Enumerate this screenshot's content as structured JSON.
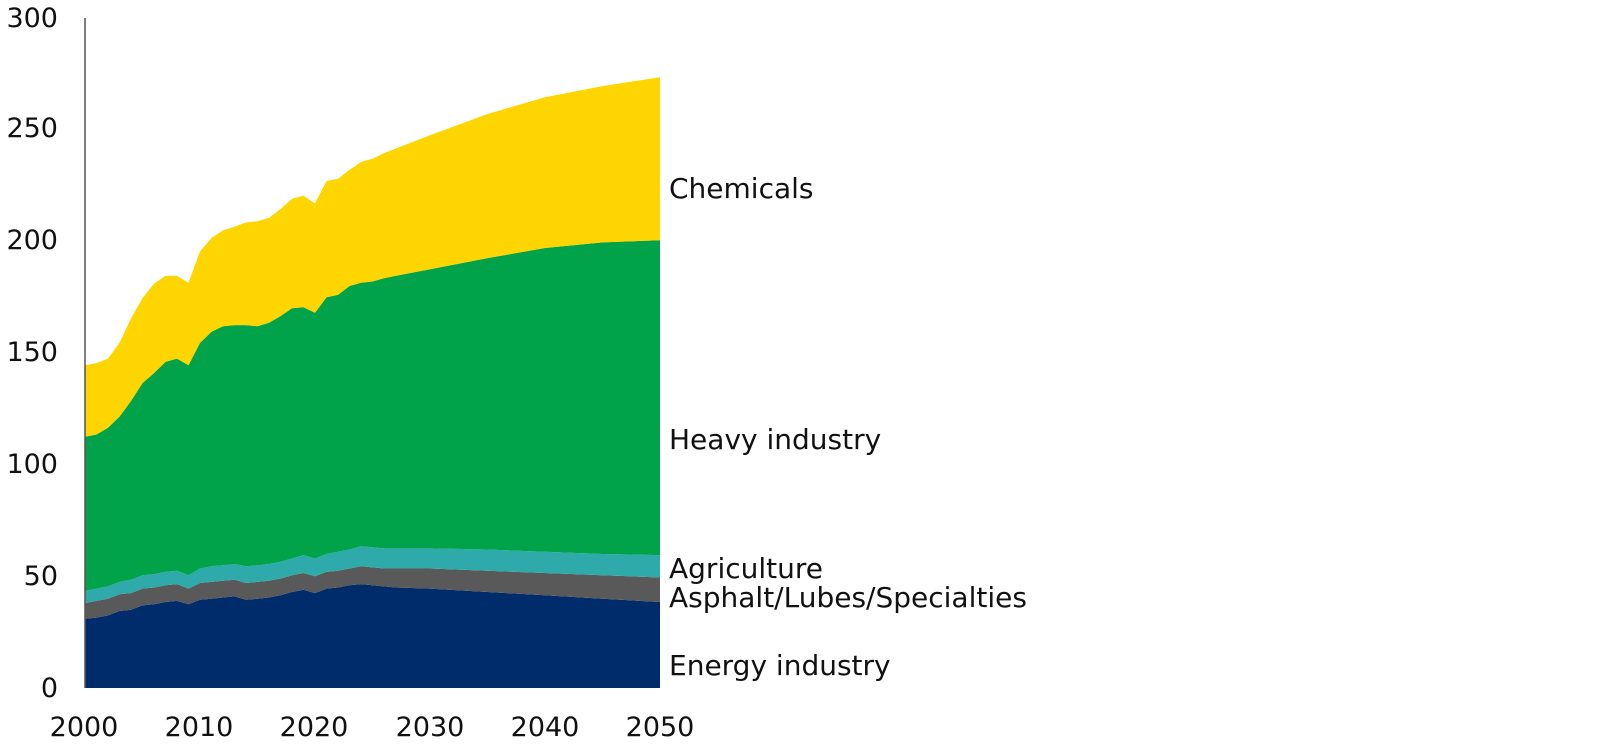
{
  "chart_data": {
    "type": "area",
    "stacked": true,
    "x": [
      2000,
      2001,
      2002,
      2003,
      2004,
      2005,
      2006,
      2007,
      2008,
      2009,
      2010,
      2011,
      2012,
      2013,
      2014,
      2015,
      2016,
      2017,
      2018,
      2019,
      2020,
      2021,
      2022,
      2023,
      2024,
      2025,
      2026,
      2027,
      2030,
      2035,
      2040,
      2045,
      2050
    ],
    "series": [
      {
        "name": "Energy industry",
        "color": "#002c6b",
        "values": [
          31,
          31.5,
          32.5,
          34.5,
          35,
          37,
          37.5,
          38.5,
          39,
          37.5,
          39.5,
          40,
          40.5,
          41,
          39.5,
          40,
          40.5,
          41.5,
          43,
          44,
          42.5,
          44.5,
          45,
          46,
          46.5,
          46,
          45.5,
          45,
          44.5,
          43,
          41.5,
          40,
          38.5
        ]
      },
      {
        "name": "Asphalt/Lubes/Specialties",
        "color": "#595959",
        "values": [
          7,
          7.5,
          7.5,
          7.5,
          7.5,
          7.5,
          7.5,
          7.5,
          7.5,
          7,
          7.5,
          7.5,
          7.5,
          7.5,
          7.5,
          7.5,
          7.5,
          7.5,
          7.5,
          7.5,
          7.5,
          7.5,
          7.5,
          7.5,
          8,
          8,
          8,
          8.5,
          9,
          9.5,
          10,
          10.5,
          11
        ]
      },
      {
        "name": "Agriculture",
        "color": "#2eaaaa",
        "values": [
          5.5,
          5.5,
          5.5,
          5.5,
          6,
          6,
          6,
          6,
          6,
          6,
          6.5,
          7,
          7,
          7,
          7.5,
          7.5,
          7.5,
          7.5,
          7.5,
          8,
          8,
          8,
          8.5,
          8.5,
          9,
          9,
          9,
          9,
          9,
          9.5,
          9.5,
          9.5,
          10
        ]
      },
      {
        "name": "Heavy industry",
        "color": "#00a24a",
        "values": [
          69,
          69,
          71,
          74,
          80,
          86,
          90,
          94,
          95,
          94,
          101,
          105,
          107,
          107,
          108,
          107,
          108,
          110,
          112,
          111,
          110,
          115,
          115,
          118,
          118,
          119,
          121,
          122,
          125,
          130.5,
          136,
          139.5,
          141
        ]
      },
      {
        "name": "Chemicals",
        "color": "#ffd500",
        "values": [
          32,
          32,
          31,
          33,
          37,
          38,
          40,
          38.5,
          37,
          37,
          41,
          42,
          43,
          44,
          46,
          47,
          47,
          48,
          49,
          50,
          49,
          52,
          52,
          52,
          54,
          55,
          56,
          57,
          60,
          64.5,
          67.5,
          70,
          73
        ]
      }
    ],
    "ylim": [
      0,
      300
    ],
    "xlim": [
      2000,
      2050
    ],
    "yticks": [
      "0",
      "50",
      "100",
      "150",
      "200",
      "250",
      "300"
    ],
    "xticks": [
      "2000",
      "2010",
      "2020",
      "2030",
      "2040",
      "2050"
    ],
    "title": "",
    "xlabel": "",
    "ylabel": "",
    "grid": false,
    "legend": "direct labels at right end of areas",
    "labels": [
      "Chemicals",
      "Heavy industry",
      "Agriculture",
      "Asphalt/Lubes/Specialties",
      "Energy industry"
    ]
  }
}
